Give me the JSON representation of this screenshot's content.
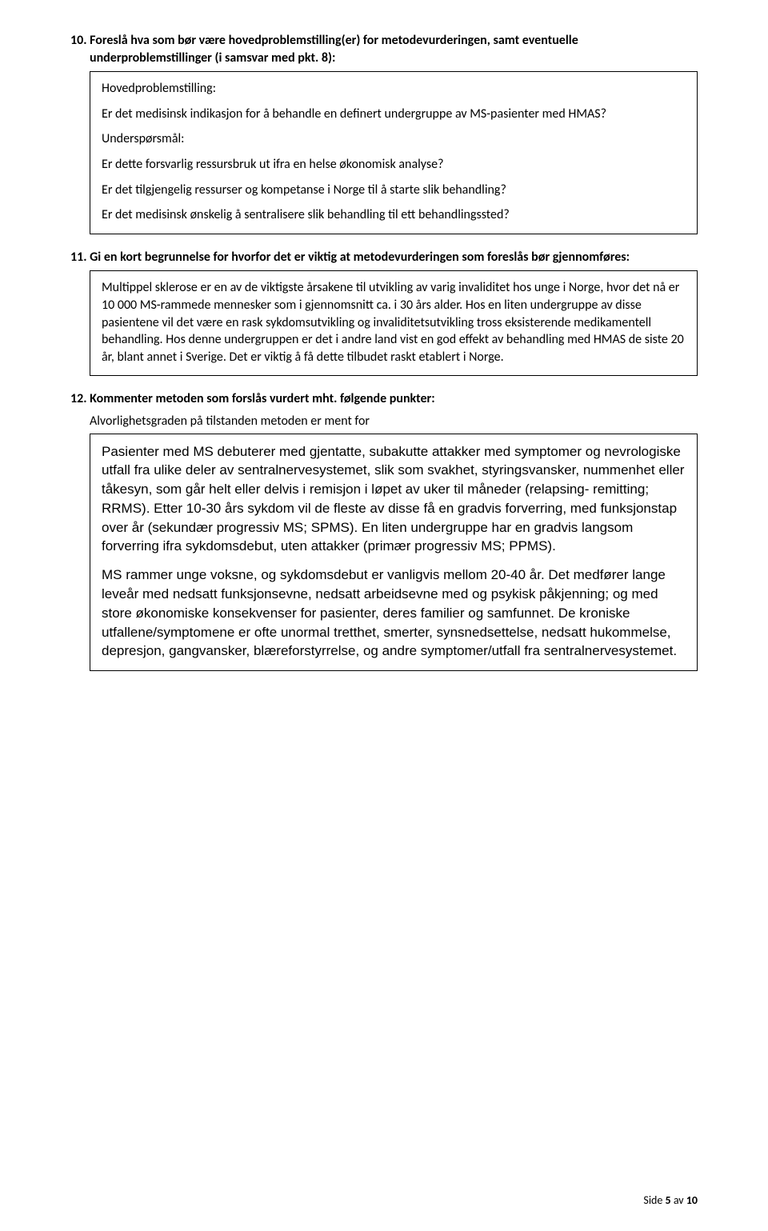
{
  "q10": {
    "heading": "10. Foreslå hva som bør være hovedproblemstilling(er) for metodevurderingen, samt eventuelle underproblemstillinger (i samsvar med pkt. 8):",
    "p1": "Hovedproblemstilling:",
    "p2": "Er det medisinsk indikasjon for å behandle en definert undergruppe av MS-pasienter med HMAS?",
    "p3": "Underspørsmål:",
    "p4": "Er dette forsvarlig ressursbruk ut ifra en helse økonomisk analyse?",
    "p5": "Er det tilgjengelig ressurser og kompetanse i Norge til å starte slik behandling?",
    "p6": "Er det medisinsk ønskelig å sentralisere slik behandling til ett behandlingssted?"
  },
  "q11": {
    "heading": "11. Gi en kort begrunnelse for hvorfor det er viktig at metodevurderingen som foreslås bør gjennomføres:",
    "p1": "Multippel sklerose er en av de viktigste årsakene til utvikling av varig invaliditet hos unge i Norge, hvor det nå er 10 000 MS-rammede mennesker som i gjennomsnitt ca. i 30 års alder. Hos en liten undergruppe av disse pasientene vil det være en rask sykdomsutvikling og invaliditetsutvikling tross eksisterende medikamentell behandling. Hos denne undergruppen er det i andre land vist en god effekt av behandling med HMAS de siste 20 år, blant annet i Sverige. Det er viktig å få dette tilbudet raskt etablert i Norge."
  },
  "q12": {
    "heading": "12. Kommenter metoden som forslås vurdert mht. følgende punkter:",
    "sub": "Alvorlighetsgraden på tilstanden metoden er ment for",
    "p1": "Pasienter med MS debuterer med gjentatte, subakutte attakker med symptomer og nevrologiske utfall fra ulike deler av sentralnervesystemet, slik som svakhet, styringsvansker, nummenhet eller tåkesyn, som går helt eller delvis i remisjon i løpet av uker til måneder (relapsing- remitting; RRMS). Etter 10-30 års sykdom vil de fleste av disse få en gradvis forverring, med funksjonstap over år (sekundær progressiv MS; SPMS). En liten undergruppe har en gradvis langsom forverring ifra sykdomsdebut, uten attakker (primær progressiv MS; PPMS).",
    "p2": "MS rammer unge voksne, og sykdomsdebut er vanligvis mellom 20-40 år. Det medfører lange leveår med nedsatt funksjonsevne, nedsatt arbeidsevne med og psykisk påkjenning; og med store økonomiske konsekvenser for pasienter, deres familier og samfunnet.  De kroniske utfallene/symptomene er ofte unormal tretthet, smerter, synsnedsettelse, nedsatt hukommelse, depresjon, gangvansker, blæreforstyrrelse, og andre symptomer/utfall fra sentralnervesystemet."
  },
  "footer": {
    "prefix": "Side ",
    "page": "5",
    "mid": " av ",
    "total": "10"
  }
}
